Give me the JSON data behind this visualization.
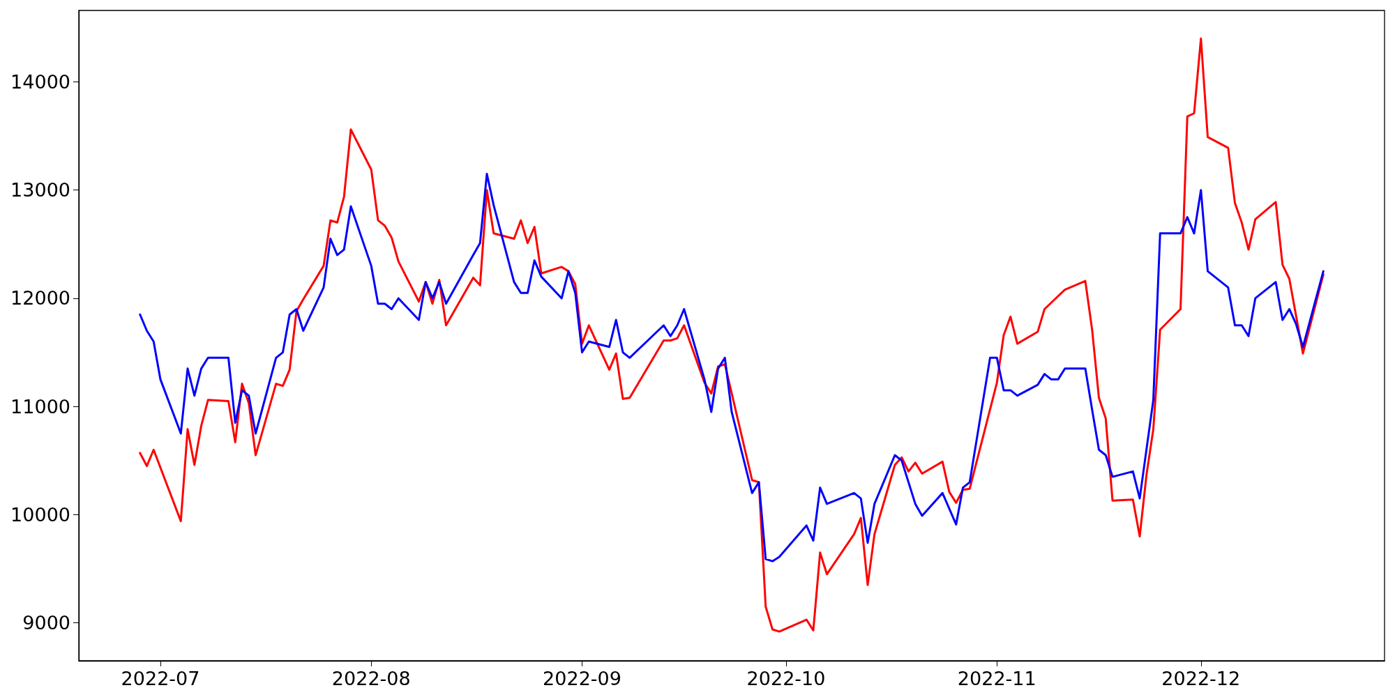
{
  "chart_data": {
    "type": "line",
    "xlim": [
      "2022-06-19",
      "2022-12-28"
    ],
    "xticks": [
      "2022-07",
      "2022-08",
      "2022-09",
      "2022-10",
      "2022-11",
      "2022-12"
    ],
    "ylim": [
      8650,
      14660
    ],
    "yticks": [
      9000,
      10000,
      11000,
      12000,
      13000,
      14000
    ],
    "grid": false,
    "marker": "none",
    "line_style": "solid",
    "series": [
      {
        "color": "#ff0000",
        "x": [
          "2022-06-28",
          "2022-06-29",
          "2022-06-30",
          "2022-07-04",
          "2022-07-05",
          "2022-07-06",
          "2022-07-07",
          "2022-07-08",
          "2022-07-11",
          "2022-07-12",
          "2022-07-13",
          "2022-07-14",
          "2022-07-15",
          "2022-07-18",
          "2022-07-19",
          "2022-07-20",
          "2022-07-21",
          "2022-07-22",
          "2022-07-25",
          "2022-07-26",
          "2022-07-27",
          "2022-07-28",
          "2022-07-29",
          "2022-08-01",
          "2022-08-02",
          "2022-08-03",
          "2022-08-04",
          "2022-08-05",
          "2022-08-08",
          "2022-08-09",
          "2022-08-10",
          "2022-08-11",
          "2022-08-12",
          "2022-08-16",
          "2022-08-17",
          "2022-08-18",
          "2022-08-19",
          "2022-08-22",
          "2022-08-23",
          "2022-08-24",
          "2022-08-25",
          "2022-08-26",
          "2022-08-29",
          "2022-08-30",
          "2022-08-31",
          "2022-09-01",
          "2022-09-02",
          "2022-09-05",
          "2022-09-06",
          "2022-09-07",
          "2022-09-08",
          "2022-09-13",
          "2022-09-14",
          "2022-09-15",
          "2022-09-16",
          "2022-09-19",
          "2022-09-20",
          "2022-09-21",
          "2022-09-22",
          "2022-09-26",
          "2022-09-27",
          "2022-09-28",
          "2022-09-29",
          "2022-09-30",
          "2022-10-04",
          "2022-10-05",
          "2022-10-06",
          "2022-10-07",
          "2022-10-11",
          "2022-10-12",
          "2022-10-13",
          "2022-10-14",
          "2022-10-17",
          "2022-10-18",
          "2022-10-19",
          "2022-10-20",
          "2022-10-21",
          "2022-10-24",
          "2022-10-25",
          "2022-10-26",
          "2022-10-27",
          "2022-10-28",
          "2022-11-01",
          "2022-11-02",
          "2022-11-03",
          "2022-11-04",
          "2022-11-07",
          "2022-11-08",
          "2022-11-11",
          "2022-11-14",
          "2022-11-15",
          "2022-11-16",
          "2022-11-17",
          "2022-11-18",
          "2022-11-21",
          "2022-11-22",
          "2022-11-23",
          "2022-11-24",
          "2022-11-25",
          "2022-11-28",
          "2022-11-29",
          "2022-11-30",
          "2022-12-01",
          "2022-12-02",
          "2022-12-05",
          "2022-12-06",
          "2022-12-07",
          "2022-12-08",
          "2022-12-09",
          "2022-12-12",
          "2022-12-13",
          "2022-12-14",
          "2022-12-16",
          "2022-12-19"
        ],
        "values": [
          10570,
          10450,
          10600,
          9940,
          10790,
          10460,
          10820,
          11060,
          11050,
          10670,
          11210,
          11030,
          10550,
          11210,
          11190,
          11340,
          11880,
          11990,
          12300,
          12720,
          12700,
          12940,
          13560,
          13190,
          12720,
          12670,
          12560,
          12340,
          11970,
          12150,
          11950,
          12170,
          11750,
          12190,
          12120,
          13000,
          12600,
          12550,
          12720,
          12510,
          12660,
          12230,
          12290,
          12250,
          12130,
          11580,
          11750,
          11340,
          11490,
          11070,
          11080,
          11610,
          11610,
          11630,
          11750,
          11220,
          11120,
          11370,
          11390,
          10320,
          10300,
          9150,
          8940,
          8920,
          9030,
          8930,
          9650,
          9450,
          9820,
          9970,
          9350,
          9820,
          10460,
          10530,
          10400,
          10480,
          10380,
          10490,
          10210,
          10110,
          10230,
          10240,
          11220,
          11660,
          11830,
          11580,
          11690,
          11900,
          12080,
          12160,
          11710,
          11080,
          10890,
          10130,
          10140,
          9800,
          10370,
          10790,
          11710,
          11900,
          13680,
          13710,
          14400,
          13490,
          13390,
          12880,
          12700,
          12450,
          12730,
          12890,
          12310,
          12180,
          11490,
          12220
        ]
      },
      {
        "color": "#0000ff",
        "x": [
          "2022-06-28",
          "2022-06-29",
          "2022-06-30",
          "2022-07-01",
          "2022-07-04",
          "2022-07-05",
          "2022-07-06",
          "2022-07-07",
          "2022-07-08",
          "2022-07-11",
          "2022-07-12",
          "2022-07-13",
          "2022-07-14",
          "2022-07-15",
          "2022-07-18",
          "2022-07-19",
          "2022-07-20",
          "2022-07-21",
          "2022-07-22",
          "2022-07-25",
          "2022-07-26",
          "2022-07-27",
          "2022-07-28",
          "2022-07-29",
          "2022-08-01",
          "2022-08-02",
          "2022-08-03",
          "2022-08-04",
          "2022-08-05",
          "2022-08-08",
          "2022-08-09",
          "2022-08-10",
          "2022-08-11",
          "2022-08-12",
          "2022-08-16",
          "2022-08-17",
          "2022-08-18",
          "2022-08-19",
          "2022-08-22",
          "2022-08-23",
          "2022-08-24",
          "2022-08-25",
          "2022-08-26",
          "2022-08-29",
          "2022-08-30",
          "2022-08-31",
          "2022-09-01",
          "2022-09-02",
          "2022-09-05",
          "2022-09-06",
          "2022-09-07",
          "2022-09-08",
          "2022-09-13",
          "2022-09-14",
          "2022-09-15",
          "2022-09-16",
          "2022-09-19",
          "2022-09-20",
          "2022-09-21",
          "2022-09-22",
          "2022-09-23",
          "2022-09-26",
          "2022-09-27",
          "2022-09-28",
          "2022-09-29",
          "2022-09-30",
          "2022-10-04",
          "2022-10-05",
          "2022-10-06",
          "2022-10-07",
          "2022-10-11",
          "2022-10-12",
          "2022-10-13",
          "2022-10-14",
          "2022-10-17",
          "2022-10-18",
          "2022-10-20",
          "2022-10-21",
          "2022-10-24",
          "2022-10-26",
          "2022-10-27",
          "2022-10-28",
          "2022-10-31",
          "2022-11-01",
          "2022-11-02",
          "2022-11-03",
          "2022-11-04",
          "2022-11-07",
          "2022-11-08",
          "2022-11-09",
          "2022-11-10",
          "2022-11-11",
          "2022-11-14",
          "2022-11-15",
          "2022-11-16",
          "2022-11-17",
          "2022-11-18",
          "2022-11-21",
          "2022-11-22",
          "2022-11-24",
          "2022-11-25",
          "2022-11-28",
          "2022-11-29",
          "2022-11-30",
          "2022-12-01",
          "2022-12-02",
          "2022-12-05",
          "2022-12-06",
          "2022-12-07",
          "2022-12-08",
          "2022-12-09",
          "2022-12-12",
          "2022-12-13",
          "2022-12-14",
          "2022-12-15",
          "2022-12-16",
          "2022-12-19"
        ],
        "values": [
          11850,
          11700,
          11600,
          11250,
          10750,
          11350,
          11100,
          11350,
          11450,
          11450,
          10850,
          11150,
          11100,
          10750,
          11450,
          11500,
          11850,
          11900,
          11700,
          12100,
          12550,
          12400,
          12450,
          12850,
          12300,
          11950,
          11950,
          11900,
          12000,
          11800,
          12150,
          12000,
          12150,
          11950,
          12400,
          12510,
          13150,
          12860,
          12150,
          12050,
          12050,
          12350,
          12200,
          12000,
          12250,
          12050,
          11500,
          11600,
          11550,
          11800,
          11500,
          11450,
          11750,
          11650,
          11750,
          11900,
          11250,
          10950,
          11350,
          11450,
          10950,
          10200,
          10300,
          9590,
          9570,
          9610,
          9900,
          9760,
          10250,
          10100,
          10200,
          10150,
          9740,
          10100,
          10550,
          10500,
          10100,
          9990,
          10200,
          9910,
          10250,
          10300,
          11450,
          11450,
          11150,
          11150,
          11100,
          11200,
          11300,
          11250,
          11250,
          11350,
          11350,
          10970,
          10600,
          10550,
          10350,
          10400,
          10150,
          11060,
          12600,
          12600,
          12750,
          12600,
          13000,
          12250,
          12100,
          11750,
          11750,
          11650,
          12000,
          12150,
          11800,
          11900,
          11760,
          11550,
          12250
        ]
      }
    ]
  }
}
